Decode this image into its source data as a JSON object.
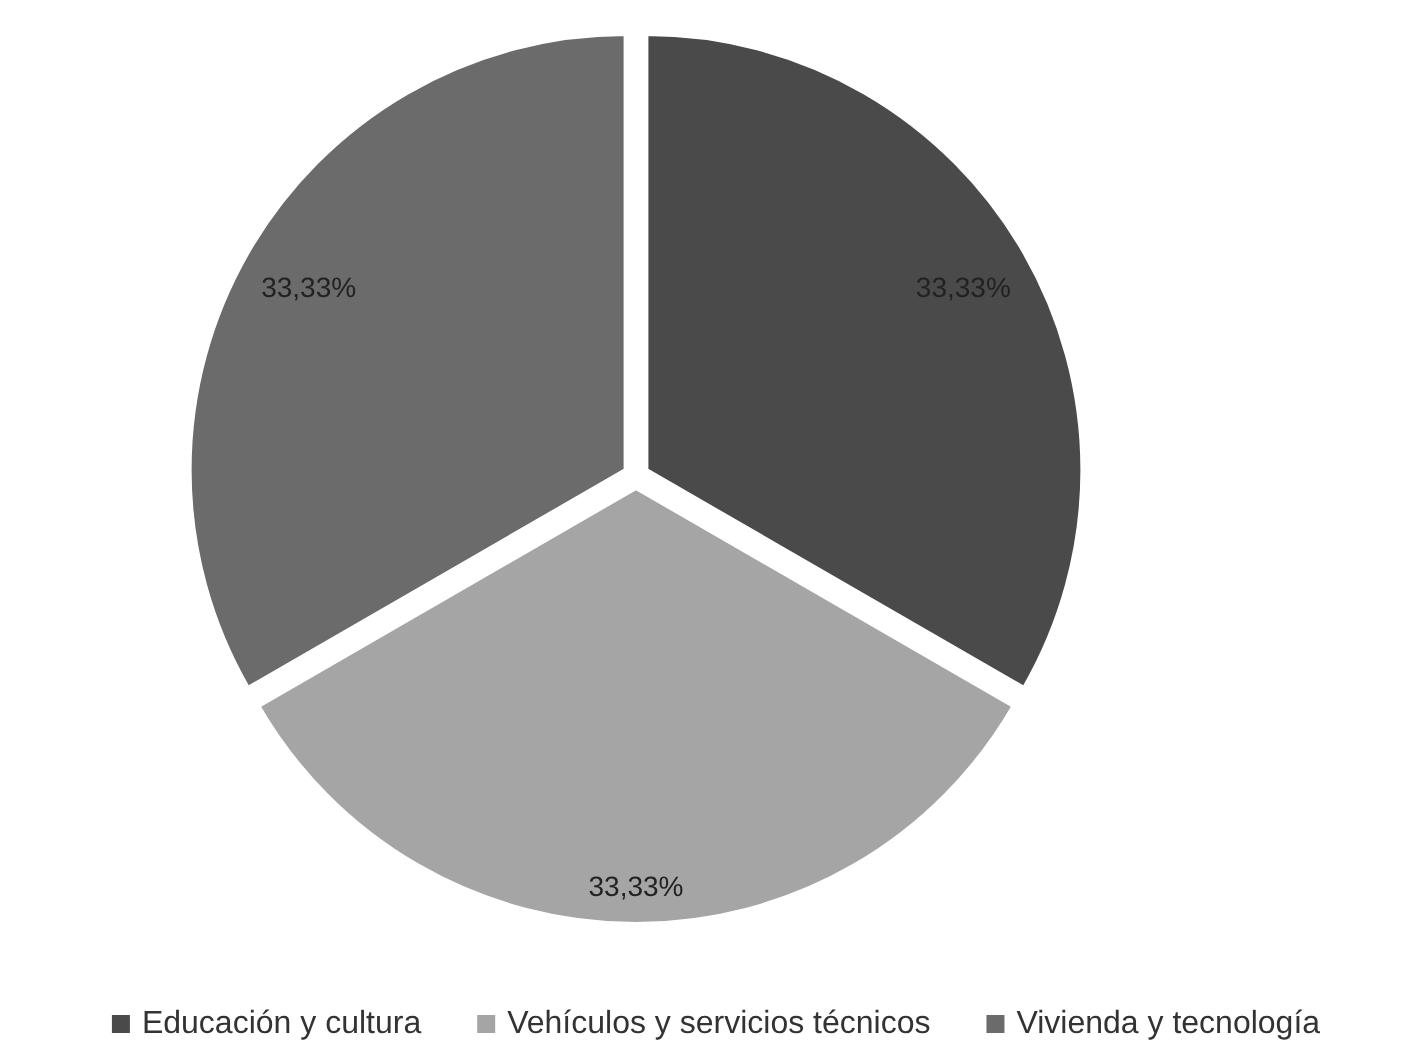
{
  "chart_data": {
    "type": "pie",
    "categories": [
      "Educación y cultura",
      "Vehículos y servicios técnicos",
      "Vivienda y tecnología"
    ],
    "values": [
      33.33,
      33.33,
      33.33
    ],
    "colors": [
      "#4a4a4a",
      "#a5a5a5",
      "#6b6b6b"
    ],
    "value_labels": [
      "33,33%",
      "33,33%",
      "33,33%"
    ],
    "legend": "bottom"
  }
}
